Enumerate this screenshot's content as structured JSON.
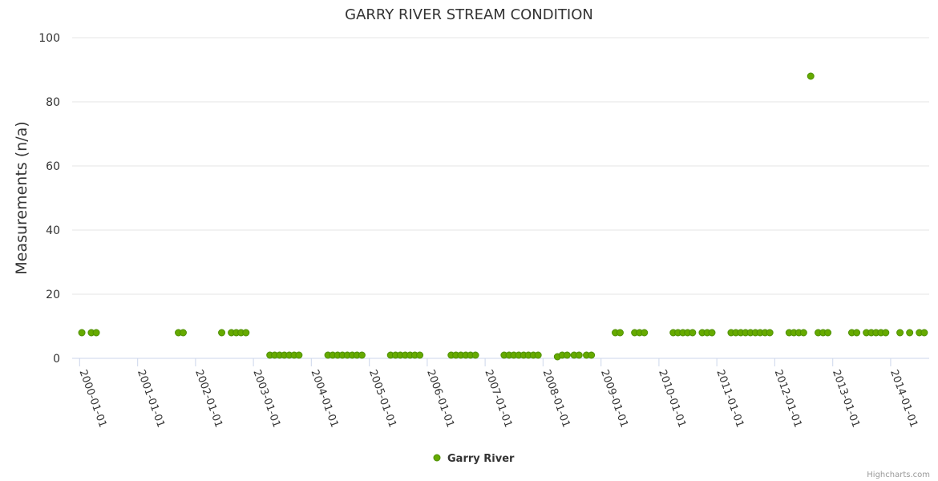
{
  "chart_data": {
    "type": "scatter",
    "title": "GARRY RIVER STREAM CONDITION",
    "xlabel": "",
    "ylabel": "Measurements (n/a)",
    "ylim": [
      0,
      100
    ],
    "yticks": [
      0,
      20,
      40,
      60,
      80,
      100
    ],
    "xlim": [
      "1999-11-15",
      "2014-09-01"
    ],
    "xticks": [
      "2000-01-01",
      "2001-01-01",
      "2002-01-01",
      "2003-01-01",
      "2004-01-01",
      "2005-01-01",
      "2006-01-01",
      "2007-01-01",
      "2008-01-01",
      "2009-01-01",
      "2010-01-01",
      "2011-01-01",
      "2012-01-01",
      "2013-01-01",
      "2014-01-01"
    ],
    "grid": true,
    "legend_position": "bottom-center",
    "colors": {
      "marker_fill": "#66aa00",
      "marker_stroke": "#4d8f00",
      "grid": "#e6e6e6",
      "axis": "#ccd6eb"
    },
    "credits": "Highcharts.com",
    "series": [
      {
        "name": "Garry River",
        "points": [
          [
            "2000-01-15",
            8
          ],
          [
            "2000-03-15",
            8
          ],
          [
            "2000-04-15",
            8
          ],
          [
            "2001-09-15",
            8
          ],
          [
            "2001-10-15",
            8
          ],
          [
            "2002-06-15",
            8
          ],
          [
            "2002-08-15",
            8
          ],
          [
            "2002-09-15",
            8
          ],
          [
            "2002-10-15",
            8
          ],
          [
            "2002-11-15",
            8
          ],
          [
            "2003-04-15",
            1
          ],
          [
            "2003-05-15",
            1
          ],
          [
            "2003-06-15",
            1
          ],
          [
            "2003-07-15",
            1
          ],
          [
            "2003-08-15",
            1
          ],
          [
            "2003-09-15",
            1
          ],
          [
            "2003-10-15",
            1
          ],
          [
            "2004-04-15",
            1
          ],
          [
            "2004-05-15",
            1
          ],
          [
            "2004-06-15",
            1
          ],
          [
            "2004-07-15",
            1
          ],
          [
            "2004-08-15",
            1
          ],
          [
            "2004-09-15",
            1
          ],
          [
            "2004-10-15",
            1
          ],
          [
            "2004-11-15",
            1
          ],
          [
            "2005-05-15",
            1
          ],
          [
            "2005-06-15",
            1
          ],
          [
            "2005-07-15",
            1
          ],
          [
            "2005-08-15",
            1
          ],
          [
            "2005-09-15",
            1
          ],
          [
            "2005-10-15",
            1
          ],
          [
            "2005-11-15",
            1
          ],
          [
            "2006-06-01",
            1
          ],
          [
            "2006-07-01",
            1
          ],
          [
            "2006-08-01",
            1
          ],
          [
            "2006-09-01",
            1
          ],
          [
            "2006-10-01",
            1
          ],
          [
            "2006-11-01",
            1
          ],
          [
            "2007-05-01",
            1
          ],
          [
            "2007-06-01",
            1
          ],
          [
            "2007-07-01",
            1
          ],
          [
            "2007-08-01",
            1
          ],
          [
            "2007-09-01",
            1
          ],
          [
            "2007-10-01",
            1
          ],
          [
            "2007-11-01",
            1
          ],
          [
            "2007-12-01",
            1
          ],
          [
            "2008-04-01",
            0.5
          ],
          [
            "2008-05-01",
            1
          ],
          [
            "2008-06-01",
            1
          ],
          [
            "2008-07-15",
            1
          ],
          [
            "2008-08-15",
            1
          ],
          [
            "2008-10-01",
            1
          ],
          [
            "2008-11-01",
            1
          ],
          [
            "2009-04-01",
            8
          ],
          [
            "2009-05-01",
            8
          ],
          [
            "2009-08-01",
            8
          ],
          [
            "2009-09-01",
            8
          ],
          [
            "2009-10-01",
            8
          ],
          [
            "2010-04-01",
            8
          ],
          [
            "2010-05-01",
            8
          ],
          [
            "2010-06-01",
            8
          ],
          [
            "2010-07-01",
            8
          ],
          [
            "2010-08-01",
            8
          ],
          [
            "2010-10-01",
            8
          ],
          [
            "2010-11-01",
            8
          ],
          [
            "2010-12-01",
            8
          ],
          [
            "2011-04-01",
            8
          ],
          [
            "2011-05-01",
            8
          ],
          [
            "2011-06-01",
            8
          ],
          [
            "2011-07-01",
            8
          ],
          [
            "2011-08-01",
            8
          ],
          [
            "2011-09-01",
            8
          ],
          [
            "2011-10-01",
            8
          ],
          [
            "2011-11-01",
            8
          ],
          [
            "2011-12-01",
            8
          ],
          [
            "2012-04-01",
            8
          ],
          [
            "2012-05-01",
            8
          ],
          [
            "2012-06-01",
            8
          ],
          [
            "2012-07-01",
            8
          ],
          [
            "2012-08-15",
            88
          ],
          [
            "2012-10-01",
            8
          ],
          [
            "2012-11-01",
            8
          ],
          [
            "2012-12-01",
            8
          ],
          [
            "2013-05-01",
            8
          ],
          [
            "2013-06-01",
            8
          ],
          [
            "2013-08-01",
            8
          ],
          [
            "2013-09-01",
            8
          ],
          [
            "2013-10-01",
            8
          ],
          [
            "2013-11-01",
            8
          ],
          [
            "2013-12-01",
            8
          ],
          [
            "2014-03-01",
            8
          ],
          [
            "2014-05-01",
            8
          ],
          [
            "2014-07-01",
            8
          ],
          [
            "2014-08-01",
            8
          ]
        ]
      }
    ]
  }
}
